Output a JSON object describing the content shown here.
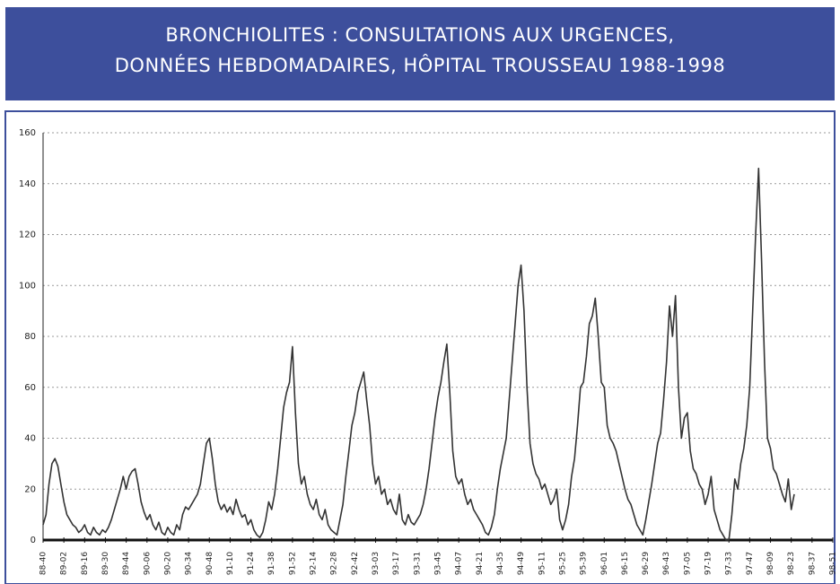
{
  "chart_data": {
    "type": "line",
    "title": [
      "BRONCHIOLITES : CONSULTATIONS AUX URGENCES,",
      "DONNÉES HEBDOMADAIRES, HÔPITAL TROUSSEAU 1988-1998"
    ],
    "categories": [
      "88-40",
      null,
      null,
      null,
      null,
      null,
      null,
      "89-02",
      null,
      null,
      null,
      null,
      null,
      null,
      "89-16",
      null,
      null,
      null,
      null,
      null,
      null,
      "89-30",
      null,
      null,
      null,
      null,
      null,
      null,
      "89-44",
      null,
      null,
      null,
      null,
      null,
      null,
      "90-06",
      null,
      null,
      null,
      null,
      null,
      null,
      "90-20",
      null,
      null,
      null,
      null,
      null,
      null,
      "90-34",
      null,
      null,
      null,
      null,
      null,
      null,
      "90-48",
      null,
      null,
      null,
      null,
      null,
      null,
      "91-10",
      null,
      null,
      null,
      null,
      null,
      null,
      "91-24",
      null,
      null,
      null,
      null,
      null,
      null,
      "91-38",
      null,
      null,
      null,
      null,
      null,
      null,
      "91-52",
      null,
      null,
      null,
      null,
      null,
      null,
      "92-14",
      null,
      null,
      null,
      null,
      null,
      null,
      "92-28",
      null,
      null,
      null,
      null,
      null,
      null,
      "92-42",
      null,
      null,
      null,
      null,
      null,
      null,
      "93-03",
      null,
      null,
      null,
      null,
      null,
      null,
      "93-17",
      null,
      null,
      null,
      null,
      null,
      null,
      "93-31",
      null,
      null,
      null,
      null,
      null,
      null,
      "93-45",
      null,
      null,
      null,
      null,
      null,
      null,
      "94-07",
      null,
      null,
      null,
      null,
      null,
      null,
      "94-21",
      null,
      null,
      null,
      null,
      null,
      null,
      "94-35",
      null,
      null,
      null,
      null,
      null,
      null,
      "94-49",
      null,
      null,
      null,
      null,
      null,
      null,
      "95-11",
      null,
      null,
      null,
      null,
      null,
      null,
      "95-25",
      null,
      null,
      null,
      null,
      null,
      null,
      "95-39",
      null,
      null,
      null,
      null,
      null,
      null,
      "96-01",
      null,
      null,
      null,
      null,
      null,
      null,
      "96-15",
      null,
      null,
      null,
      null,
      null,
      null,
      "96-29",
      null,
      null,
      null,
      null,
      null,
      null,
      "96-43",
      null,
      null,
      null,
      null,
      null,
      null,
      "97-05",
      null,
      null,
      null,
      null,
      null,
      null,
      "97-19",
      null,
      null,
      null,
      null,
      null,
      null,
      "97-33",
      null,
      null,
      null,
      null,
      null,
      null,
      "97-47",
      null,
      null,
      null,
      null,
      null,
      null,
      "98-09",
      null,
      null,
      null,
      null,
      null,
      null,
      "98-23",
      null,
      null,
      null,
      null,
      null,
      null,
      "98-37",
      null,
      null,
      null,
      null,
      null,
      null,
      "98-51"
    ],
    "series": [
      {
        "name": null,
        "color": "#333333",
        "values": [
          6,
          10,
          22,
          30,
          32,
          29,
          22,
          15,
          10,
          8,
          6,
          5,
          3,
          4,
          6,
          3,
          2,
          5,
          3,
          2,
          4,
          3,
          5,
          8,
          12,
          16,
          20,
          25,
          20,
          25,
          27,
          28,
          22,
          15,
          11,
          8,
          10,
          6,
          4,
          7,
          3,
          2,
          5,
          3,
          2,
          6,
          4,
          10,
          13,
          12,
          14,
          16,
          18,
          22,
          30,
          38,
          40,
          32,
          22,
          15,
          12,
          14,
          11,
          13,
          10,
          16,
          12,
          9,
          10,
          6,
          8,
          4,
          2,
          1,
          3,
          8,
          15,
          12,
          18,
          28,
          40,
          52,
          58,
          62,
          76,
          50,
          30,
          22,
          25,
          18,
          14,
          12,
          16,
          10,
          8,
          12,
          6,
          4,
          3,
          2,
          8,
          14,
          25,
          35,
          45,
          50,
          58,
          62,
          66,
          55,
          45,
          30,
          22,
          25,
          18,
          20,
          14,
          16,
          12,
          10,
          18,
          8,
          6,
          10,
          7,
          6,
          8,
          10,
          14,
          20,
          28,
          38,
          48,
          56,
          62,
          70,
          77,
          58,
          35,
          25,
          22,
          24,
          18,
          14,
          16,
          12,
          10,
          8,
          6,
          3,
          2,
          5,
          10,
          20,
          28,
          34,
          40,
          55,
          70,
          85,
          100,
          108,
          90,
          60,
          38,
          30,
          26,
          24,
          20,
          22,
          18,
          14,
          16,
          20,
          8,
          4,
          8,
          14,
          25,
          32,
          45,
          60,
          62,
          72,
          85,
          88,
          95,
          80,
          62,
          60,
          45,
          40,
          38,
          35,
          30,
          25,
          20,
          16,
          14,
          10,
          6,
          4,
          2,
          8,
          15,
          22,
          30,
          38,
          42,
          55,
          70,
          92,
          80,
          96,
          60,
          40,
          48,
          50,
          35,
          28,
          26,
          22,
          20,
          14,
          18,
          25,
          12,
          8,
          4,
          2,
          0,
          0,
          10,
          24,
          20,
          30,
          36,
          45,
          60,
          90,
          120,
          146,
          110,
          70,
          40,
          36,
          28,
          26,
          22,
          18,
          15,
          24,
          12,
          18,
          null,
          null,
          null,
          null,
          null,
          null,
          null,
          null,
          null,
          null,
          null,
          null,
          null
        ]
      }
    ],
    "ylim": [
      0,
      160
    ],
    "yticks": [
      0,
      20,
      40,
      60,
      80,
      100,
      120,
      140,
      160
    ],
    "grid": true
  }
}
